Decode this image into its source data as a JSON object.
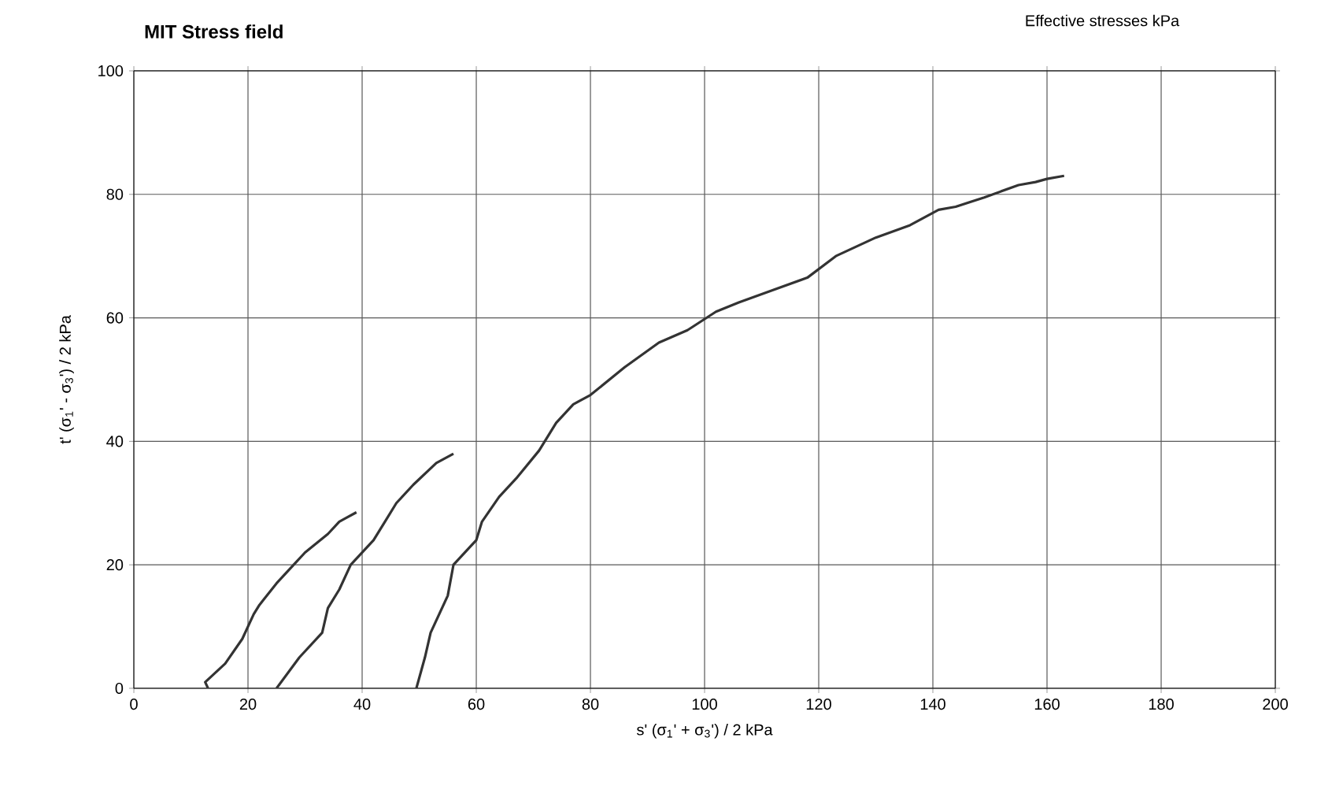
{
  "chart_data": {
    "type": "line",
    "title": "MIT Stress field",
    "xlabel": "s'  (σ$_{1}$' + σ$_{3}$') / 2  kPa",
    "ylabel": "t'  (σ$_{1}$' - σ$_{3}$') / 2  kPa",
    "annotations": [
      "Effective stresses  kPa"
    ],
    "xlim": [
      0,
      200
    ],
    "ylim": [
      0,
      100
    ],
    "xticks": [
      0,
      20,
      40,
      60,
      80,
      100,
      120,
      140,
      160,
      180,
      200
    ],
    "yticks": [
      0,
      20,
      40,
      60,
      80,
      100
    ],
    "grid": true,
    "marker": "none",
    "line_style": "solid",
    "series": [
      {
        "color": "#333333",
        "x": [
          13,
          12.5,
          16,
          19,
          21,
          22,
          25,
          28,
          30,
          32,
          34,
          36,
          37,
          39
        ],
        "values": [
          0,
          1,
          4,
          8,
          12,
          13.5,
          17,
          20,
          22,
          23.5,
          25,
          27,
          27.5,
          28.5
        ]
      },
      {
        "color": "#333333",
        "x": [
          25,
          29,
          33,
          34,
          36,
          38,
          42,
          44,
          46,
          49,
          53,
          56
        ],
        "values": [
          0,
          5,
          9,
          13,
          16,
          20,
          24,
          27,
          30,
          33,
          36.5,
          38
        ]
      },
      {
        "color": "#333333",
        "x": [
          49.5,
          51,
          52,
          55,
          56,
          59,
          60,
          61,
          64,
          67,
          71,
          74,
          77,
          80,
          86,
          92,
          97,
          102,
          106,
          112,
          118,
          123,
          130,
          136,
          141,
          144,
          149,
          155,
          158,
          160,
          163
        ],
        "values": [
          0,
          5,
          9,
          15,
          20,
          23,
          24,
          27,
          31,
          34,
          38.5,
          43,
          46,
          47.5,
          52,
          56,
          58,
          61,
          62.5,
          64.5,
          66.5,
          70,
          73,
          75,
          77.5,
          78,
          79.5,
          81.5,
          82,
          82.5,
          83
        ]
      }
    ]
  }
}
